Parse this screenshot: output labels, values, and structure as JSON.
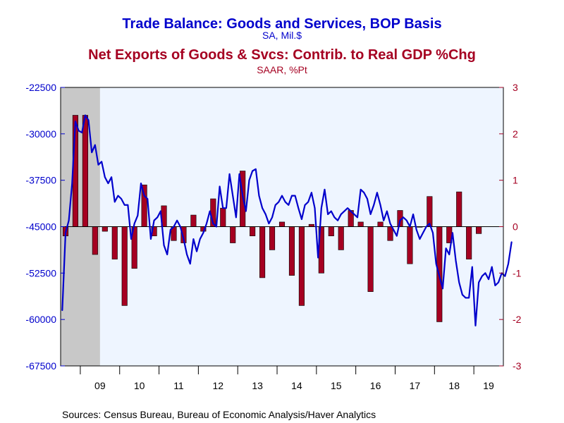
{
  "colors": {
    "line": "#0000cc",
    "bar": "#a50021",
    "bar_outline": "#000000",
    "plot_bg": "#eef5ff",
    "recession": "#c8c8c8",
    "frame": "#000000"
  },
  "chart_data": {
    "type": "bar+line",
    "title": "Trade Balance: Goods and Services, BOP Basis",
    "title_units": "SA, Mil.$",
    "subtitle": "Net Exports of Goods & Svcs: Contrib. to Real GDP %Chg",
    "subtitle_units": "SAAR, %Pt",
    "source": "Sources:  Census Bureau, Bureau of Economic Analysis/Haver Analytics",
    "x_range": [
      2008.5,
      2019.75
    ],
    "recession_shade": [
      2008.5,
      2009.5
    ],
    "x_tick_labels": [
      {
        "label": "09",
        "year": 2009
      },
      {
        "label": "10",
        "year": 2010
      },
      {
        "label": "11",
        "year": 2011
      },
      {
        "label": "12",
        "year": 2012
      },
      {
        "label": "13",
        "year": 2013
      },
      {
        "label": "14",
        "year": 2014
      },
      {
        "label": "15",
        "year": 2015
      },
      {
        "label": "16",
        "year": 2016
      },
      {
        "label": "17",
        "year": 2017
      },
      {
        "label": "18",
        "year": 2018
      },
      {
        "label": "19",
        "year": 2019
      }
    ],
    "left_axis": {
      "ylim": [
        -67500,
        -22500
      ],
      "ticks": [
        -22500,
        -30000,
        -37500,
        -45000,
        -52500,
        -60000,
        -67500
      ],
      "tick_labels": [
        "-22500",
        "-30000",
        "-37500",
        "-45000",
        "-52500",
        "-60000",
        "-67500"
      ]
    },
    "right_axis": {
      "ylim": [
        -3,
        3
      ],
      "ticks": [
        3,
        2,
        1,
        0,
        -1,
        -2,
        -3
      ],
      "tick_labels": [
        "3",
        "2",
        "1",
        "0",
        "-1",
        "-2",
        "-3"
      ]
    },
    "series": [
      {
        "type": "line",
        "axis": "left",
        "frequency": "monthly",
        "start": "2008-07",
        "values": [
          -58500,
          -46000,
          -44000,
          -38000,
          -28000,
          -29500,
          -29800,
          -27000,
          -27800,
          -33000,
          -31800,
          -35000,
          -34500,
          -37000,
          -38000,
          -37000,
          -41000,
          -40000,
          -40500,
          -41500,
          -41500,
          -47000,
          -44500,
          -43200,
          -38000,
          -40000,
          -40500,
          -47000,
          -44000,
          -43500,
          -42500,
          -48000,
          -49500,
          -45500,
          -45000,
          -44000,
          -45000,
          -47000,
          -49500,
          -51000,
          -47000,
          -49000,
          -47000,
          -46000,
          -44500,
          -42500,
          -44500,
          -45000,
          -38500,
          -42000,
          -42000,
          -36500,
          -40000,
          -43500,
          -36500,
          -40000,
          -42500,
          -37500,
          -36000,
          -35700,
          -40000,
          -42000,
          -43000,
          -44500,
          -43500,
          -41500,
          -41000,
          -40000,
          -41000,
          -41500,
          -40000,
          -40000,
          -42000,
          -43800,
          -41500,
          -41000,
          -39500,
          -42000,
          -50000,
          -42000,
          -39000,
          -43000,
          -42500,
          -43500,
          -44000,
          -43000,
          -42500,
          -42000,
          -42500,
          -43000,
          -43500,
          -39000,
          -39500,
          -40500,
          -43000,
          -41500,
          -39500,
          -41500,
          -44000,
          -42500,
          -44500,
          -45500,
          -46500,
          -44000,
          -43500,
          -44000,
          -45000,
          -43000,
          -45500,
          -47000,
          -46000,
          -45000,
          -44500,
          -46000,
          -51000,
          -53000,
          -55000,
          -48500,
          -49500,
          -46000,
          -50500,
          -54000,
          -56000,
          -56500,
          -56500,
          -51500,
          -61000,
          -54000,
          -53000,
          -52500,
          -53500,
          -51500,
          -54500,
          -54000,
          -52500,
          -53000,
          -51000,
          -47500
        ]
      },
      {
        "type": "bar",
        "axis": "right",
        "frequency": "quarterly",
        "start": "2008Q3",
        "values": [
          -0.2,
          2.4,
          2.4,
          -0.6,
          -0.1,
          -0.7,
          -1.7,
          -0.9,
          0.9,
          -0.2,
          0.45,
          -0.3,
          -0.35,
          0.25,
          -0.1,
          0.6,
          0.4,
          -0.35,
          1.2,
          -0.2,
          -1.1,
          -0.5,
          0.1,
          -1.05,
          -1.7,
          0.05,
          -1.0,
          -0.2,
          -0.5,
          0.35,
          0.1,
          -1.4,
          0.1,
          -0.3,
          0.35,
          -0.8,
          0.0,
          0.65,
          -2.05,
          -0.35,
          0.75,
          -0.7,
          -0.15
        ]
      }
    ]
  }
}
